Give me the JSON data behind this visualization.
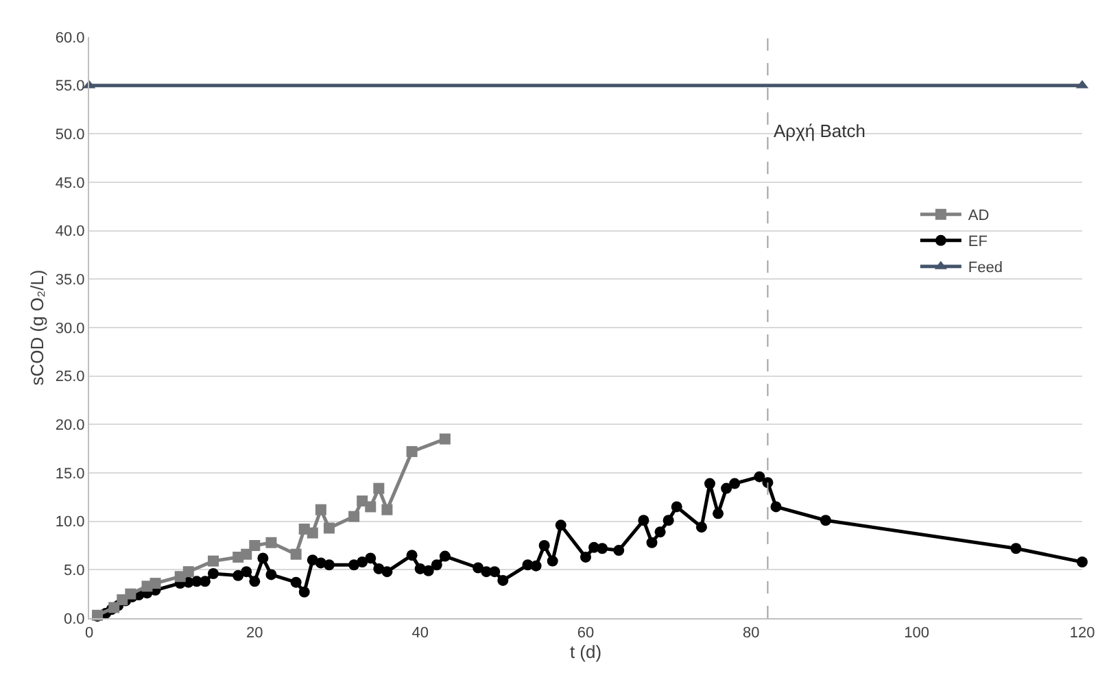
{
  "chart_data": {
    "type": "line",
    "xlabel": "t (d)",
    "ylabel": "sCOD (g O₂/L)",
    "xlim": [
      0,
      120
    ],
    "xticks": [
      0,
      20,
      40,
      60,
      80,
      100,
      120
    ],
    "ylim": [
      0,
      60
    ],
    "yticks": [
      {
        "value": 0,
        "label": "0.0"
      },
      {
        "value": 5,
        "label": "5.0"
      },
      {
        "value": 10,
        "label": "10.0"
      },
      {
        "value": 15,
        "label": "15.0"
      },
      {
        "value": 20,
        "label": "20.0"
      },
      {
        "value": 25,
        "label": "25.0"
      },
      {
        "value": 30,
        "label": "30.0"
      },
      {
        "value": 35,
        "label": "35.0"
      },
      {
        "value": 40,
        "label": "40.0"
      },
      {
        "value": 45,
        "label": "45.0"
      },
      {
        "value": 50,
        "label": "50.0"
      },
      {
        "value": 55,
        "label": "55.0"
      },
      {
        "value": 60,
        "label": "60.0"
      }
    ],
    "grid": "y",
    "legend": "right",
    "series": [
      {
        "name": "AD",
        "color": "#808080",
        "marker": "square",
        "x": [
          1,
          3,
          4,
          5,
          7,
          8,
          11,
          12,
          15,
          18,
          19,
          20,
          22,
          25,
          26,
          27,
          28,
          29,
          32,
          33,
          34,
          35,
          36,
          39,
          43
        ],
        "values": [
          0.3,
          1.1,
          1.9,
          2.5,
          3.3,
          3.6,
          4.3,
          4.8,
          5.9,
          6.3,
          6.6,
          7.5,
          7.8,
          6.6,
          9.2,
          8.8,
          11.2,
          9.3,
          10.5,
          12.1,
          11.5,
          13.4,
          11.2,
          17.2,
          18.5
        ]
      },
      {
        "name": "EF",
        "color": "#000000",
        "marker": "circle",
        "x": [
          1,
          2,
          2.7,
          3.5,
          4.4,
          5.2,
          6,
          7,
          8,
          11,
          12,
          13,
          14,
          15,
          18,
          19,
          20,
          21,
          22,
          25,
          26,
          27,
          28,
          29,
          32,
          33,
          34,
          35,
          36,
          39,
          40,
          41,
          42,
          43,
          47,
          48,
          49,
          50,
          53,
          54,
          55,
          56,
          57,
          60,
          61,
          62,
          64,
          67,
          68,
          69,
          70,
          71,
          74,
          75,
          76,
          77,
          78,
          81,
          82,
          83,
          89,
          112,
          120
        ],
        "values": [
          0.2,
          0.5,
          0.9,
          1.3,
          1.8,
          2.2,
          2.4,
          2.6,
          2.9,
          3.6,
          3.7,
          3.8,
          3.8,
          4.6,
          4.4,
          4.8,
          3.8,
          6.2,
          4.5,
          3.7,
          2.7,
          6.0,
          5.7,
          5.5,
          5.5,
          5.8,
          6.2,
          5.1,
          4.8,
          6.5,
          5.1,
          4.9,
          5.5,
          6.4,
          5.2,
          4.8,
          4.8,
          3.9,
          5.5,
          5.4,
          7.5,
          5.9,
          9.6,
          6.3,
          7.3,
          7.2,
          7.0,
          10.1,
          7.8,
          8.9,
          10.1,
          11.5,
          9.4,
          13.9,
          10.8,
          13.4,
          13.9,
          14.6,
          14.0,
          11.5,
          10.1,
          7.2,
          5.8
        ]
      },
      {
        "name": "Feed",
        "color": "#44546a",
        "marker": "triangle",
        "x": [
          0,
          120
        ],
        "values": [
          55,
          55
        ]
      }
    ],
    "ref_lines": [
      {
        "axis": "x",
        "value": 82,
        "label": "Αρχή Batch",
        "color": "#a0a0a0",
        "line_style": "dashed"
      }
    ]
  }
}
